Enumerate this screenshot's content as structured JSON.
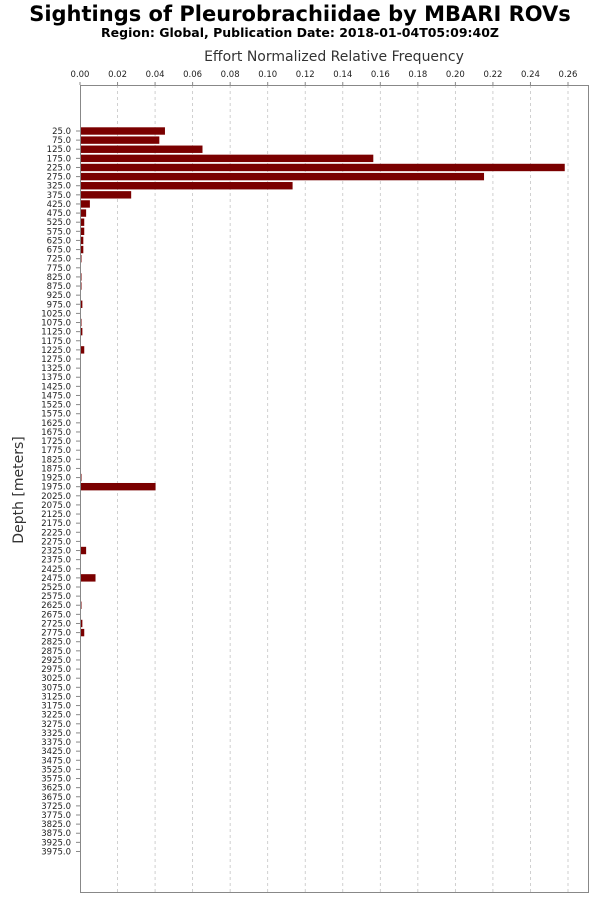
{
  "header": {
    "title": "Sightings of Pleurobrachiidae by MBARI ROVs",
    "subtitle": "Region: Global, Publication Date: 2018-01-04T05:09:40Z"
  },
  "chart_data": {
    "type": "bar",
    "orientation": "horizontal",
    "title": "Sightings of Pleurobrachiidae by MBARI ROVs",
    "subtitle": "Region: Global, Publication Date: 2018-01-04T05:09:40Z",
    "xlabel": "Effort Normalized Relative Frequency",
    "ylabel": "Depth [meters]",
    "xlim": [
      0,
      0.27
    ],
    "x_ticks": [
      "0.00",
      "0.02",
      "0.04",
      "0.06",
      "0.08",
      "0.10",
      "0.12",
      "0.14",
      "0.16",
      "0.18",
      "0.20",
      "0.22",
      "0.24",
      "0.26"
    ],
    "x_axis_position": "top",
    "grid": "vertical dashed",
    "bar_color": "#7a0000",
    "categories": [
      "25.0",
      "75.0",
      "125.0",
      "175.0",
      "225.0",
      "275.0",
      "325.0",
      "375.0",
      "425.0",
      "475.0",
      "525.0",
      "575.0",
      "625.0",
      "675.0",
      "725.0",
      "775.0",
      "825.0",
      "875.0",
      "925.0",
      "975.0",
      "1025.0",
      "1075.0",
      "1125.0",
      "1175.0",
      "1225.0",
      "1275.0",
      "1325.0",
      "1375.0",
      "1425.0",
      "1475.0",
      "1525.0",
      "1575.0",
      "1625.0",
      "1675.0",
      "1725.0",
      "1775.0",
      "1825.0",
      "1875.0",
      "1925.0",
      "1975.0",
      "2025.0",
      "2075.0",
      "2125.0",
      "2175.0",
      "2225.0",
      "2275.0",
      "2325.0",
      "2375.0",
      "2425.0",
      "2475.0",
      "2525.0",
      "2575.0",
      "2625.0",
      "2675.0",
      "2725.0",
      "2775.0",
      "2825.0",
      "2875.0",
      "2925.0",
      "2975.0",
      "3025.0",
      "3075.0",
      "3125.0",
      "3175.0",
      "3225.0",
      "3275.0",
      "3325.0",
      "3375.0",
      "3425.0",
      "3475.0",
      "3525.0",
      "3575.0",
      "3625.0",
      "3675.0",
      "3725.0",
      "3775.0",
      "3825.0",
      "3875.0",
      "3925.0",
      "3975.0"
    ],
    "values": [
      0.045,
      0.042,
      0.065,
      0.156,
      0.258,
      0.215,
      0.113,
      0.027,
      0.005,
      0.003,
      0.002,
      0.002,
      0.0015,
      0.0015,
      0.0005,
      0,
      0.0003,
      0.0005,
      0,
      0.001,
      0,
      0.0005,
      0.001,
      0,
      0.002,
      0,
      0,
      0,
      0,
      0,
      0,
      0,
      0,
      0,
      0,
      0,
      0,
      0,
      0.0003,
      0.04,
      0,
      0,
      0,
      0,
      0,
      0,
      0.003,
      0,
      0,
      0.008,
      0,
      0,
      0.0005,
      0,
      0.001,
      0.002,
      0,
      0,
      0,
      0,
      0,
      0,
      0,
      0,
      0,
      0,
      0,
      0,
      0,
      0,
      0,
      0,
      0,
      0,
      0,
      0,
      0,
      0,
      0,
      0
    ]
  }
}
